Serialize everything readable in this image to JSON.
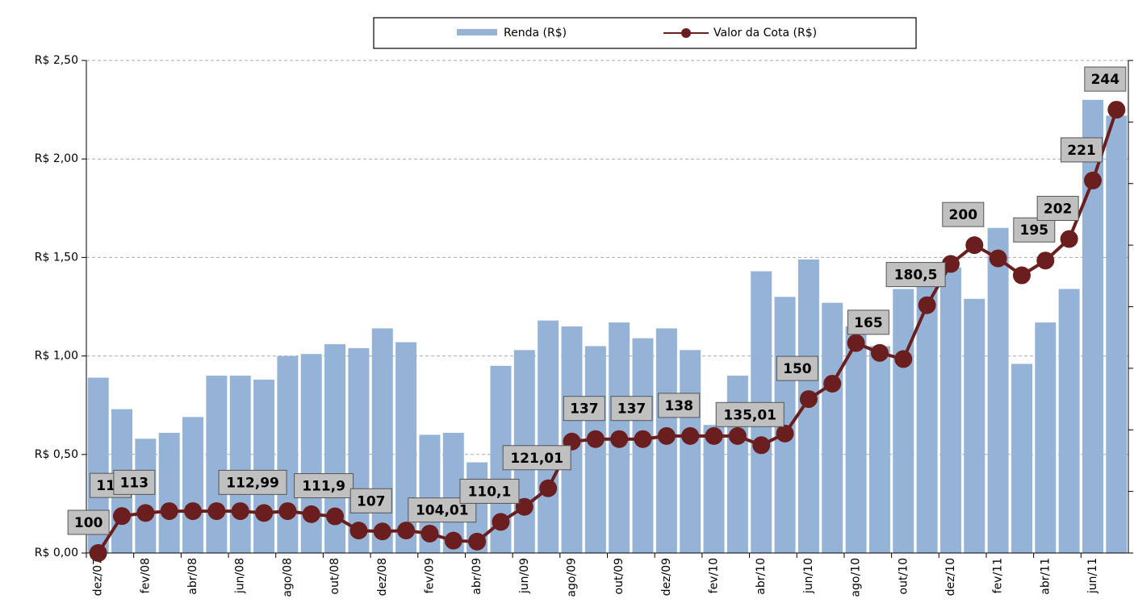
{
  "chart_data": {
    "type": "bar_line",
    "categories": [
      "dez/07",
      null,
      "fev/08",
      null,
      "abr/08",
      null,
      "jun/08",
      null,
      "ago/08",
      null,
      "out/08",
      null,
      "dez/08",
      null,
      "fev/09",
      null,
      "abr/09",
      null,
      "jun/09",
      null,
      "ago/09",
      null,
      "out/09",
      null,
      "dez/09",
      null,
      "fev/10",
      null,
      "abr/10",
      null,
      "jun/10",
      null,
      "ago/10",
      null,
      "out/10",
      null,
      "dez/10",
      null,
      "fev/11",
      null,
      "abr/11",
      null,
      "jun/11",
      null
    ],
    "series": [
      {
        "name": "Renda (R$)",
        "color": "#95b3d7",
        "values": [
          0.89,
          0.73,
          0.58,
          0.61,
          0.69,
          0.9,
          0.9,
          0.88,
          1.0,
          1.01,
          1.06,
          1.04,
          1.14,
          1.07,
          0.6,
          0.61,
          0.46,
          0.95,
          1.03,
          1.18,
          1.15,
          1.05,
          1.17,
          1.09,
          1.14,
          1.03,
          0.65,
          0.9,
          1.43,
          1.3,
          1.49,
          1.27,
          1.15,
          1.05,
          1.34,
          1.4,
          1.45,
          1.29,
          1.65,
          0.96,
          1.17,
          1.34,
          2.3,
          2.22
        ]
      },
      {
        "name": "Valor da Cota (R$)",
        "color": "#6b1e1e",
        "axis": "y2",
        "values": [
          100,
          112,
          113,
          113.6,
          113.6,
          113.6,
          113.6,
          112.99,
          113.6,
          112.6,
          111.9,
          107.3,
          107,
          107.3,
          106.3,
          104.01,
          103.7,
          110.1,
          115,
          121.01,
          136.2,
          137,
          137,
          137,
          138,
          138,
          138,
          138,
          135.01,
          138.8,
          150,
          155,
          168.2,
          165,
          163,
          180.5,
          193.9,
          200,
          195.7,
          190.2,
          195,
          202,
          221,
          244
        ],
        "value_labels": [
          null,
          "112",
          "113",
          null,
          null,
          null,
          null,
          "112,99",
          null,
          null,
          "111,9",
          null,
          "107",
          null,
          null,
          "104,01",
          null,
          "110,1",
          null,
          "121,01",
          null,
          "137",
          null,
          "137",
          null,
          "138",
          null,
          null,
          "135,01",
          null,
          "150",
          null,
          null,
          "165",
          null,
          "180,5",
          null,
          "200",
          null,
          null,
          "195",
          "202",
          "221",
          "244"
        ]
      }
    ],
    "first_label": "100",
    "ylim": [
      0,
      2.5
    ],
    "yticks": [
      {
        "value": 0,
        "label": "R$ 0,00"
      },
      {
        "value": 0.5,
        "label": "R$ 0,50"
      },
      {
        "value": 1,
        "label": "R$ 1,00"
      },
      {
        "value": 1.5,
        "label": "R$ 1,50"
      },
      {
        "value": 2,
        "label": "R$ 2,00"
      },
      {
        "value": 2.5,
        "label": "R$ 2,50"
      }
    ],
    "y2lim": [
      100,
      260
    ],
    "y2ticks": [
      100,
      120,
      140,
      160,
      180,
      200,
      220,
      240,
      260
    ],
    "grid": true,
    "legend": "top"
  }
}
